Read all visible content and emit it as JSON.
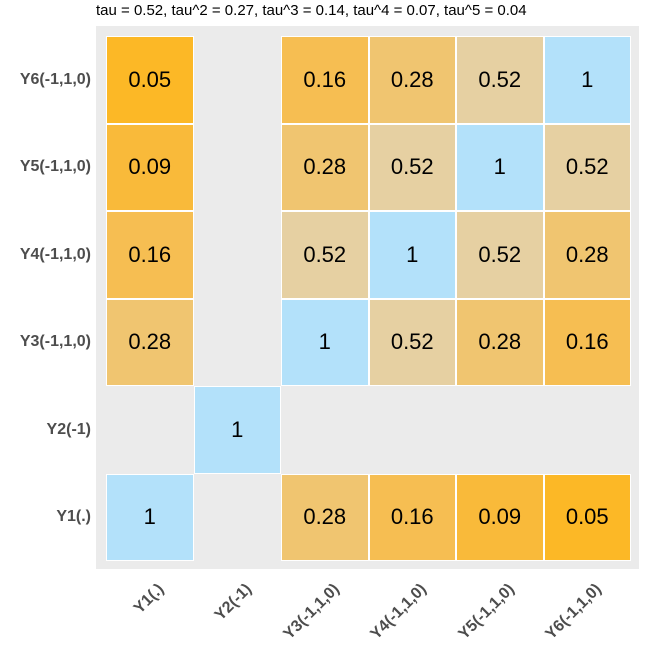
{
  "chart_data": {
    "type": "heatmap",
    "title": "tau = 0.52, tau^2 = 0.27, tau^3 = 0.14, tau^4 = 0.07, tau^5 = 0.04",
    "x_categories": [
      "Y1(.)",
      "Y2(-1)",
      "Y3(-1,1,0)",
      "Y4(-1,1,0)",
      "Y5(-1,1,0)",
      "Y6(-1,1,0)"
    ],
    "y_categories": [
      "Y1(.)",
      "Y2(-1)",
      "Y3(-1,1,0)",
      "Y4(-1,1,0)",
      "Y5(-1,1,0)",
      "Y6(-1,1,0)"
    ],
    "cells": [
      {
        "x": "Y1(.)",
        "y": "Y6(-1,1,0)",
        "value": "0.05",
        "color": "#fcb826"
      },
      {
        "x": "Y3(-1,1,0)",
        "y": "Y6(-1,1,0)",
        "value": "0.16",
        "color": "#f6be52"
      },
      {
        "x": "Y4(-1,1,0)",
        "y": "Y6(-1,1,0)",
        "value": "0.28",
        "color": "#f0c570"
      },
      {
        "x": "Y5(-1,1,0)",
        "y": "Y6(-1,1,0)",
        "value": "0.52",
        "color": "#e6d0a2"
      },
      {
        "x": "Y6(-1,1,0)",
        "y": "Y6(-1,1,0)",
        "value": "1",
        "color": "#b3e1fa"
      },
      {
        "x": "Y1(.)",
        "y": "Y5(-1,1,0)",
        "value": "0.09",
        "color": "#f9ba3a"
      },
      {
        "x": "Y3(-1,1,0)",
        "y": "Y5(-1,1,0)",
        "value": "0.28",
        "color": "#f0c570"
      },
      {
        "x": "Y4(-1,1,0)",
        "y": "Y5(-1,1,0)",
        "value": "0.52",
        "color": "#e6d0a2"
      },
      {
        "x": "Y5(-1,1,0)",
        "y": "Y5(-1,1,0)",
        "value": "1",
        "color": "#b3e1fa"
      },
      {
        "x": "Y6(-1,1,0)",
        "y": "Y5(-1,1,0)",
        "value": "0.52",
        "color": "#e6d0a2"
      },
      {
        "x": "Y1(.)",
        "y": "Y4(-1,1,0)",
        "value": "0.16",
        "color": "#f6be52"
      },
      {
        "x": "Y3(-1,1,0)",
        "y": "Y4(-1,1,0)",
        "value": "0.52",
        "color": "#e6d0a2"
      },
      {
        "x": "Y4(-1,1,0)",
        "y": "Y4(-1,1,0)",
        "value": "1",
        "color": "#b3e1fa"
      },
      {
        "x": "Y5(-1,1,0)",
        "y": "Y4(-1,1,0)",
        "value": "0.52",
        "color": "#e6d0a2"
      },
      {
        "x": "Y6(-1,1,0)",
        "y": "Y4(-1,1,0)",
        "value": "0.28",
        "color": "#f0c570"
      },
      {
        "x": "Y1(.)",
        "y": "Y3(-1,1,0)",
        "value": "0.28",
        "color": "#f0c570"
      },
      {
        "x": "Y3(-1,1,0)",
        "y": "Y3(-1,1,0)",
        "value": "1",
        "color": "#b3e1fa"
      },
      {
        "x": "Y4(-1,1,0)",
        "y": "Y3(-1,1,0)",
        "value": "0.52",
        "color": "#e6d0a2"
      },
      {
        "x": "Y5(-1,1,0)",
        "y": "Y3(-1,1,0)",
        "value": "0.28",
        "color": "#f0c570"
      },
      {
        "x": "Y6(-1,1,0)",
        "y": "Y3(-1,1,0)",
        "value": "0.16",
        "color": "#f6be52"
      },
      {
        "x": "Y2(-1)",
        "y": "Y2(-1)",
        "value": "1",
        "color": "#b3e1fa"
      },
      {
        "x": "Y1(.)",
        "y": "Y1(.)",
        "value": "1",
        "color": "#b3e1fa"
      },
      {
        "x": "Y3(-1,1,0)",
        "y": "Y1(.)",
        "value": "0.28",
        "color": "#f0c570"
      },
      {
        "x": "Y4(-1,1,0)",
        "y": "Y1(.)",
        "value": "0.16",
        "color": "#f6be52"
      },
      {
        "x": "Y5(-1,1,0)",
        "y": "Y1(.)",
        "value": "0.09",
        "color": "#f9ba3a"
      },
      {
        "x": "Y6(-1,1,0)",
        "y": "Y1(.)",
        "value": "0.05",
        "color": "#fcb826"
      }
    ],
    "background": "#ebebeb",
    "grid": false,
    "legend": "none"
  }
}
